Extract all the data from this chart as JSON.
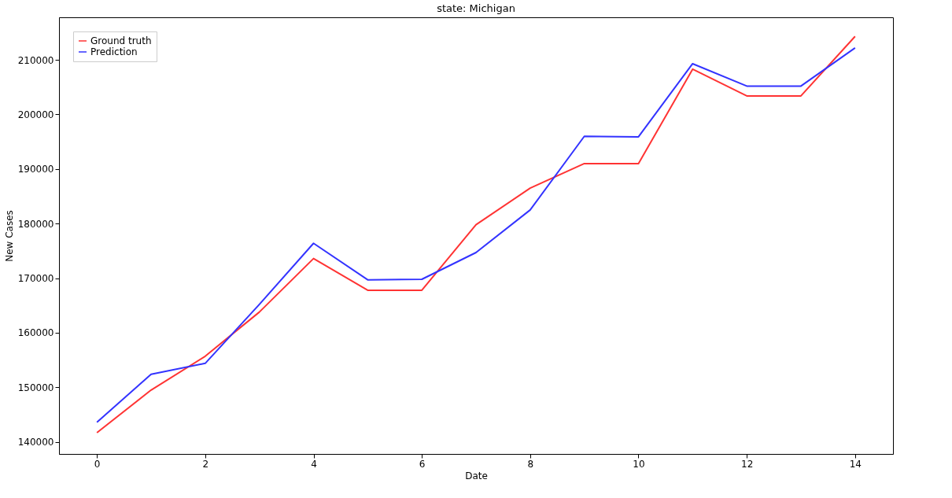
{
  "chart_data": {
    "type": "line",
    "title": "state: Michigan",
    "xlabel": "Date",
    "ylabel": "New Cases",
    "x": [
      0,
      1,
      2,
      3,
      4,
      5,
      6,
      7,
      8,
      9,
      10,
      11,
      12,
      13,
      14
    ],
    "series": [
      {
        "name": "Ground truth",
        "color": "#ff3333",
        "values": [
          141700,
          149500,
          155700,
          163800,
          173600,
          167800,
          167800,
          179800,
          186500,
          191000,
          191000,
          208300,
          203400,
          203400,
          214300
        ]
      },
      {
        "name": "Prediction",
        "color": "#3333ff",
        "values": [
          143600,
          152400,
          154400,
          165200,
          176400,
          169700,
          169800,
          174700,
          182500,
          196000,
          195900,
          209300,
          205200,
          205200,
          212200
        ]
      }
    ],
    "xlim": [
      -0.7,
      14.7
    ],
    "ylim": [
      137800,
      217800
    ],
    "xticks": [
      0,
      2,
      4,
      6,
      8,
      10,
      12,
      14
    ],
    "yticks": [
      140000,
      150000,
      160000,
      170000,
      180000,
      190000,
      200000,
      210000
    ],
    "grid": false,
    "legend": "top left",
    "marker": "none",
    "line_style": "solid"
  }
}
